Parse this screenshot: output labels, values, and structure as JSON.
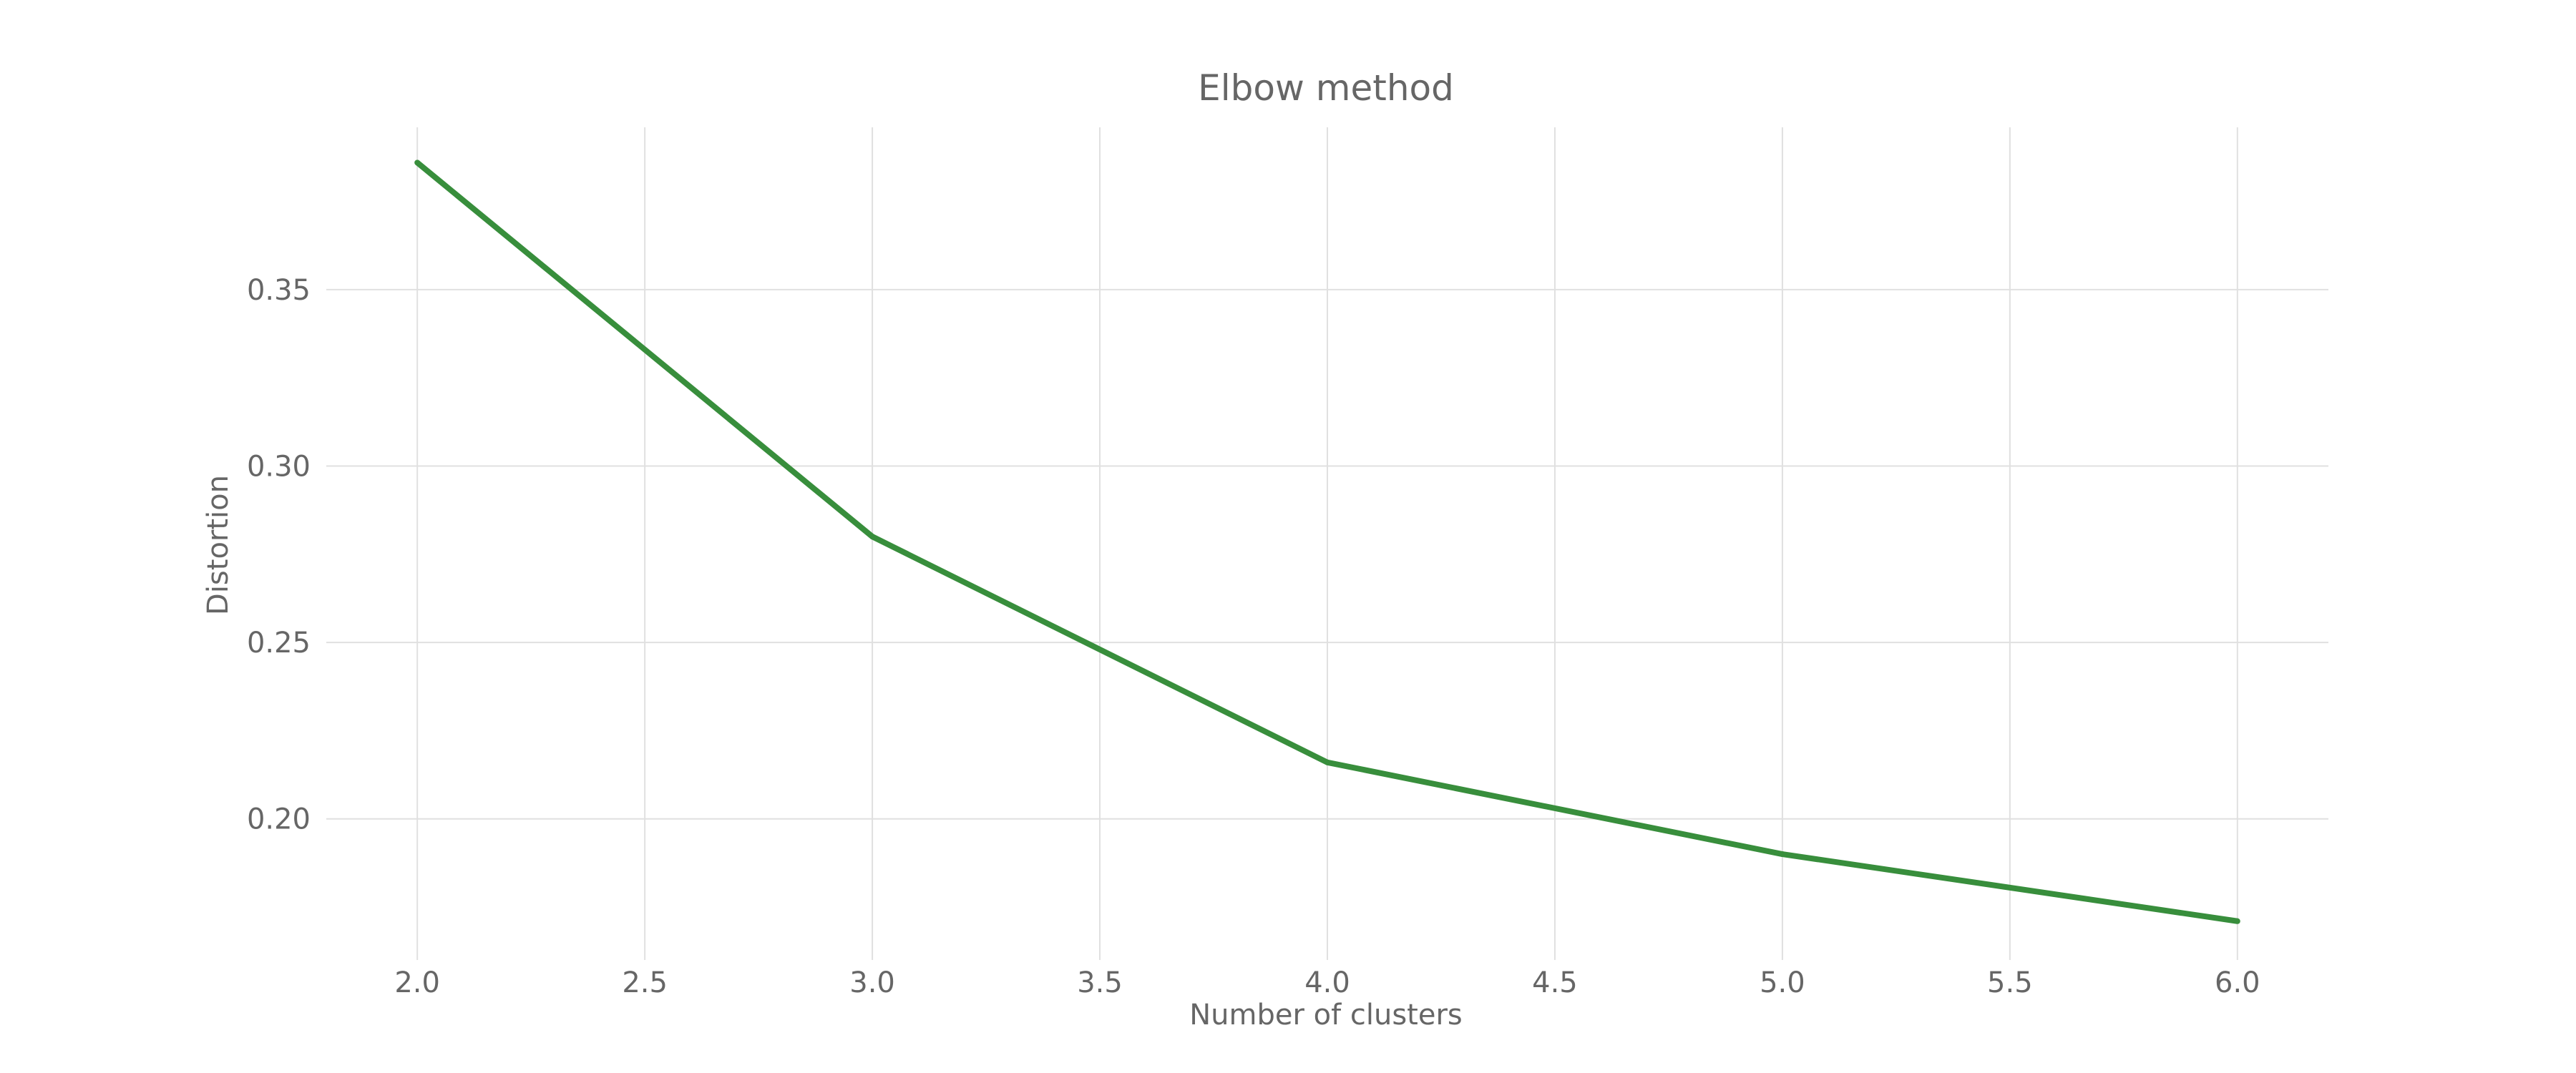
{
  "chart_data": {
    "type": "line",
    "title": "Elbow method",
    "xlabel": "Number of clusters",
    "ylabel": "Distortion",
    "x": [
      2,
      3,
      4,
      5,
      6
    ],
    "series": [
      {
        "values": [
          0.386,
          0.28,
          0.216,
          0.19,
          0.171
        ],
        "color": "#388e3c"
      }
    ],
    "xlim": [
      1.8,
      6.2
    ],
    "ylim": [
      0.16,
      0.396
    ],
    "x_ticks": [
      2.0,
      2.5,
      3.0,
      3.5,
      4.0,
      4.5,
      5.0,
      5.5,
      6.0
    ],
    "x_tick_labels": [
      "2.0",
      "2.5",
      "3.0",
      "3.5",
      "4.0",
      "4.5",
      "5.0",
      "5.5",
      "6.0"
    ],
    "y_ticks": [
      0.2,
      0.25,
      0.3,
      0.35
    ],
    "y_tick_labels": [
      "0.20",
      "0.25",
      "0.30",
      "0.35"
    ],
    "grid": true,
    "legend": "none"
  }
}
